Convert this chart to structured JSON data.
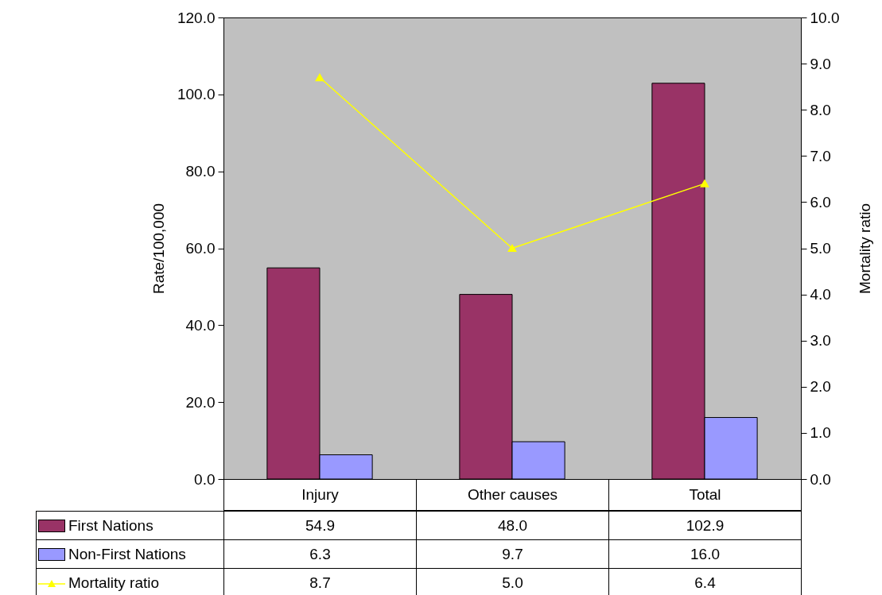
{
  "chart_data": {
    "type": "bar",
    "categories": [
      "Injury",
      "Other causes",
      "Total"
    ],
    "ylabel": "Rate/100,000",
    "y2label": "Mortality ratio",
    "ylim": [
      0,
      120
    ],
    "yticks": [
      {
        "value": 0,
        "label": "0.0"
      },
      {
        "value": 20,
        "label": "20.0"
      },
      {
        "value": 40,
        "label": "40.0"
      },
      {
        "value": 60,
        "label": "60.0"
      },
      {
        "value": 80,
        "label": "80.0"
      },
      {
        "value": 100,
        "label": "100.0"
      },
      {
        "value": 120,
        "label": "120.0"
      }
    ],
    "y2lim": [
      0,
      10
    ],
    "y2ticks": [
      {
        "value": 0,
        "label": "0.0"
      },
      {
        "value": 1,
        "label": "1.0"
      },
      {
        "value": 2,
        "label": "2.0"
      },
      {
        "value": 3,
        "label": "3.0"
      },
      {
        "value": 4,
        "label": "4.0"
      },
      {
        "value": 5,
        "label": "5.0"
      },
      {
        "value": 6,
        "label": "6.0"
      },
      {
        "value": 7,
        "label": "7.0"
      },
      {
        "value": 8,
        "label": "8.0"
      },
      {
        "value": 9,
        "label": "9.0"
      },
      {
        "value": 10,
        "label": "10.0"
      }
    ],
    "legend": "bottom",
    "grid": false,
    "marker": "triangle",
    "series": [
      {
        "name": "First Nations",
        "color": "#993366",
        "values": [
          54.9,
          48.0,
          102.9
        ],
        "value_labels": [
          "54.9",
          "48.0",
          "102.9"
        ]
      },
      {
        "name": "Non-First Nations",
        "color": "#9999ff",
        "values": [
          6.3,
          9.7,
          16.0
        ],
        "value_labels": [
          "6.3",
          "9.7",
          "16.0"
        ]
      },
      {
        "name": "Mortality ratio",
        "type": "line",
        "axis": "y2",
        "color": "#ffff00",
        "values": [
          8.7,
          5.0,
          6.4
        ],
        "value_labels": [
          "8.7",
          "5.0",
          "6.4"
        ]
      }
    ]
  }
}
